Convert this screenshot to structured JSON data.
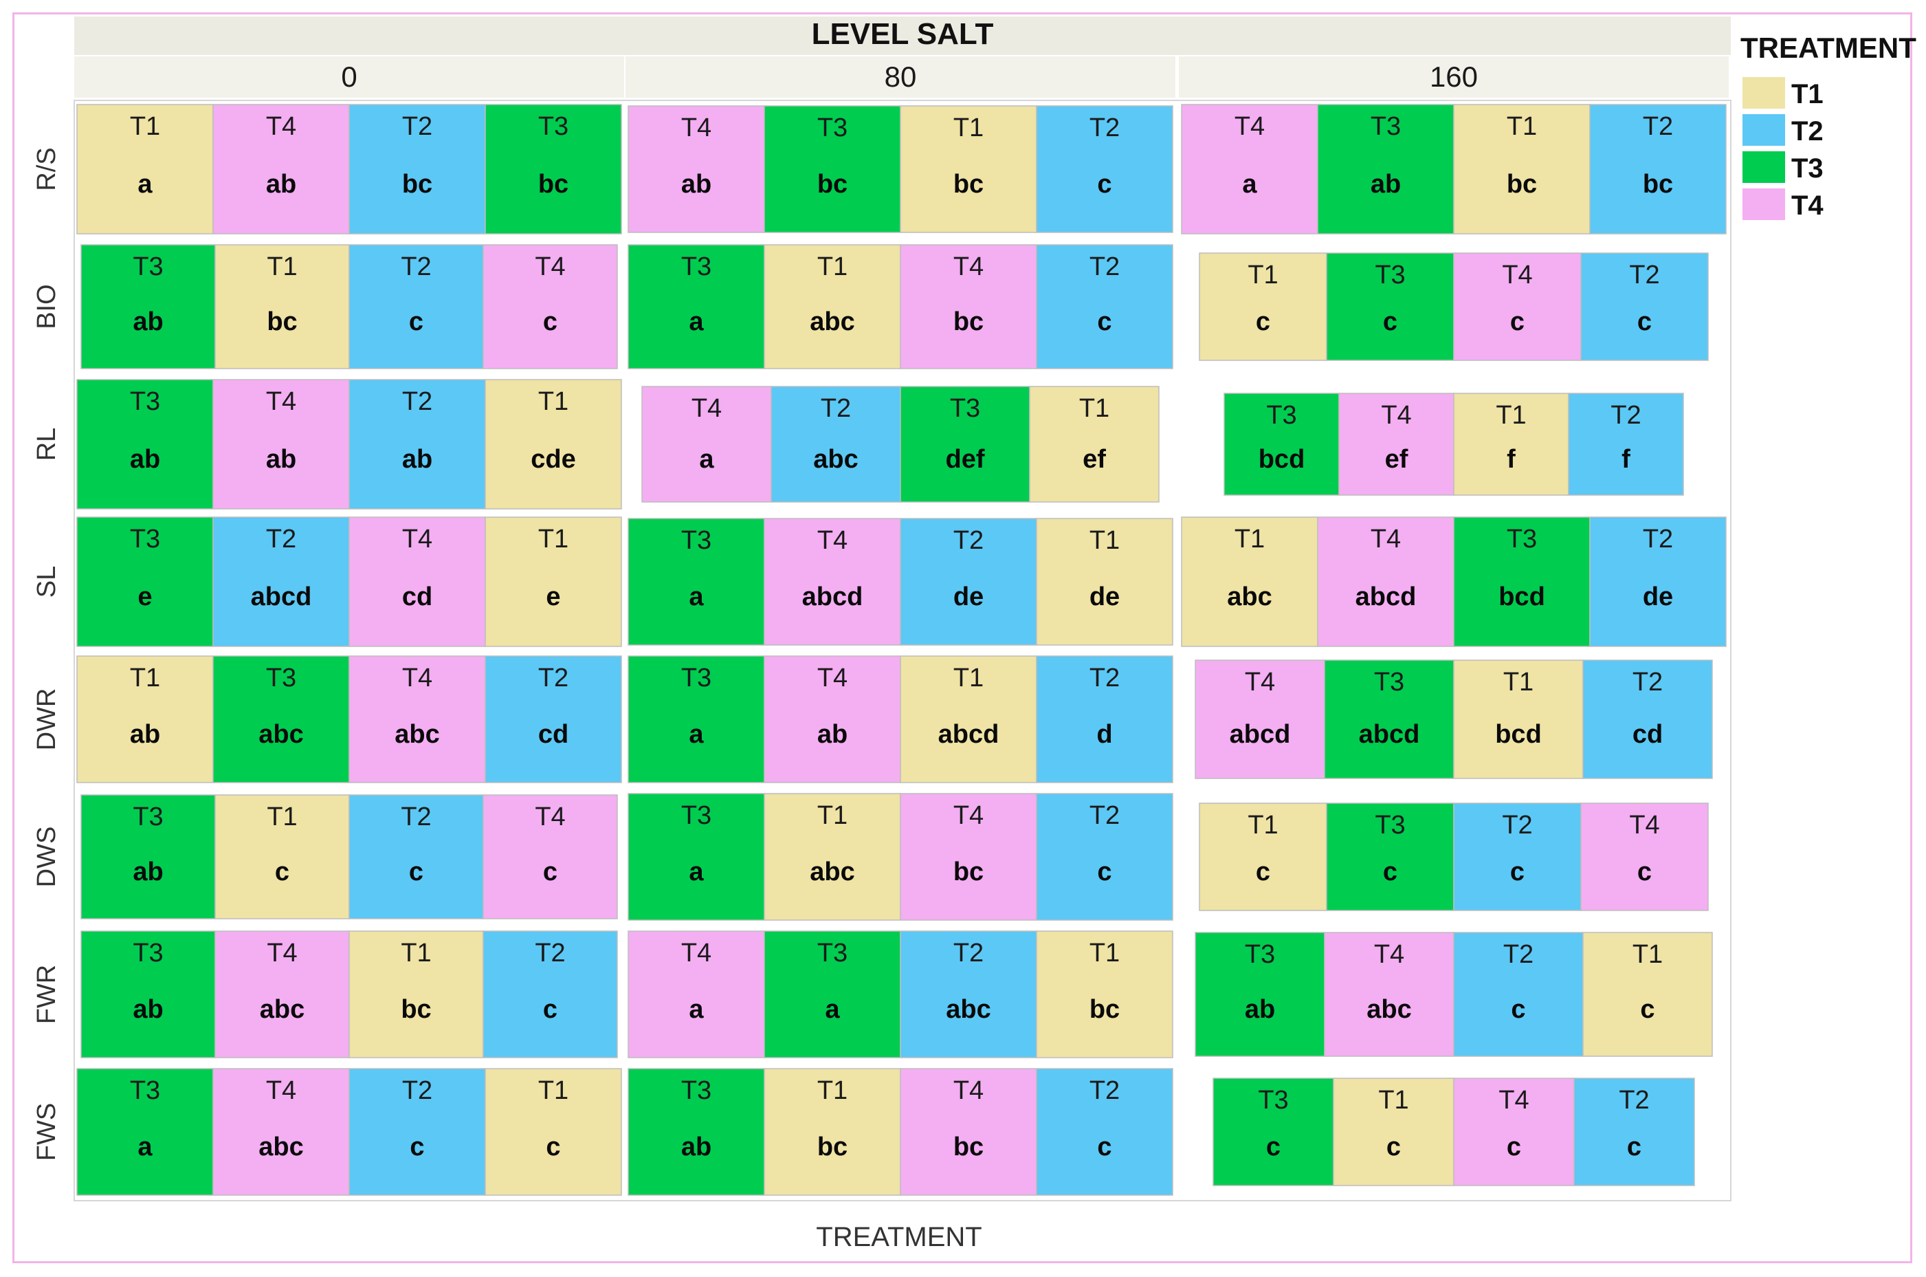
{
  "chart_data": {
    "type": "treemap",
    "title": "LEVEL SALT",
    "xlabel": "TREATMENT",
    "columns": [
      "0",
      "80",
      "160"
    ],
    "rows": [
      "R/S",
      "BIO",
      "RL",
      "SL",
      "DWR",
      "DWS",
      "FWR",
      "FWS"
    ],
    "legend": {
      "title": "TREATMENT",
      "placement": "right",
      "items": [
        {
          "label": "T1",
          "color": "#efe3a5"
        },
        {
          "label": "T2",
          "color": "#5cc8f5"
        },
        {
          "label": "T3",
          "color": "#00cc50"
        },
        {
          "label": "T4",
          "color": "#f4aef2"
        }
      ]
    },
    "cells": [
      [
        [
          {
            "t": "T1",
            "v": "a"
          },
          {
            "t": "T4",
            "v": "ab"
          },
          {
            "t": "T2",
            "v": "bc"
          },
          {
            "t": "T3",
            "v": "bc"
          }
        ],
        [
          {
            "t": "T4",
            "v": "ab"
          },
          {
            "t": "T3",
            "v": "bc"
          },
          {
            "t": "T1",
            "v": "bc"
          },
          {
            "t": "T2",
            "v": "c"
          }
        ],
        [
          {
            "t": "T4",
            "v": "a"
          },
          {
            "t": "T3",
            "v": "ab"
          },
          {
            "t": "T1",
            "v": "bc"
          },
          {
            "t": "T2",
            "v": "bc"
          }
        ]
      ],
      [
        [
          {
            "t": "T3",
            "v": "ab"
          },
          {
            "t": "T1",
            "v": "bc"
          },
          {
            "t": "T2",
            "v": "c"
          },
          {
            "t": "T4",
            "v": "c"
          }
        ],
        [
          {
            "t": "T3",
            "v": "a"
          },
          {
            "t": "T1",
            "v": "abc"
          },
          {
            "t": "T4",
            "v": "bc"
          },
          {
            "t": "T2",
            "v": "c"
          }
        ],
        [
          {
            "t": "T1",
            "v": "c"
          },
          {
            "t": "T3",
            "v": "c"
          },
          {
            "t": "T4",
            "v": "c"
          },
          {
            "t": "T2",
            "v": "c"
          }
        ]
      ],
      [
        [
          {
            "t": "T3",
            "v": "ab"
          },
          {
            "t": "T4",
            "v": "ab"
          },
          {
            "t": "T2",
            "v": "ab"
          },
          {
            "t": "T1",
            "v": "cde"
          }
        ],
        [
          {
            "t": "T4",
            "v": "a"
          },
          {
            "t": "T2",
            "v": "abc"
          },
          {
            "t": "T3",
            "v": "def"
          },
          {
            "t": "T1",
            "v": "ef"
          }
        ],
        [
          {
            "t": "T3",
            "v": "bcd"
          },
          {
            "t": "T4",
            "v": "ef"
          },
          {
            "t": "T1",
            "v": "f"
          },
          {
            "t": "T2",
            "v": "f"
          }
        ]
      ],
      [
        [
          {
            "t": "T3",
            "v": "e"
          },
          {
            "t": "T2",
            "v": "abcd"
          },
          {
            "t": "T4",
            "v": "cd"
          },
          {
            "t": "T1",
            "v": "e"
          }
        ],
        [
          {
            "t": "T3",
            "v": "a"
          },
          {
            "t": "T4",
            "v": "abcd"
          },
          {
            "t": "T2",
            "v": "de"
          },
          {
            "t": "T1",
            "v": "de"
          }
        ],
        [
          {
            "t": "T1",
            "v": "abc"
          },
          {
            "t": "T4",
            "v": "abcd"
          },
          {
            "t": "T3",
            "v": "bcd"
          },
          {
            "t": "T2",
            "v": "de"
          }
        ]
      ],
      [
        [
          {
            "t": "T1",
            "v": "ab"
          },
          {
            "t": "T3",
            "v": "abc"
          },
          {
            "t": "T4",
            "v": "abc"
          },
          {
            "t": "T2",
            "v": "cd"
          }
        ],
        [
          {
            "t": "T3",
            "v": "a"
          },
          {
            "t": "T4",
            "v": "ab"
          },
          {
            "t": "T1",
            "v": "abcd"
          },
          {
            "t": "T2",
            "v": "d"
          }
        ],
        [
          {
            "t": "T4",
            "v": "abcd"
          },
          {
            "t": "T3",
            "v": "abcd"
          },
          {
            "t": "T1",
            "v": "bcd"
          },
          {
            "t": "T2",
            "v": "cd"
          }
        ]
      ],
      [
        [
          {
            "t": "T3",
            "v": "ab"
          },
          {
            "t": "T1",
            "v": "c"
          },
          {
            "t": "T2",
            "v": "c"
          },
          {
            "t": "T4",
            "v": "c"
          }
        ],
        [
          {
            "t": "T3",
            "v": "a"
          },
          {
            "t": "T1",
            "v": "abc"
          },
          {
            "t": "T4",
            "v": "bc"
          },
          {
            "t": "T2",
            "v": "c"
          }
        ],
        [
          {
            "t": "T1",
            "v": "c"
          },
          {
            "t": "T3",
            "v": "c"
          },
          {
            "t": "T2",
            "v": "c"
          },
          {
            "t": "T4",
            "v": "c"
          }
        ]
      ],
      [
        [
          {
            "t": "T3",
            "v": "ab"
          },
          {
            "t": "T4",
            "v": "abc"
          },
          {
            "t": "T1",
            "v": "bc"
          },
          {
            "t": "T2",
            "v": "c"
          }
        ],
        [
          {
            "t": "T4",
            "v": "a"
          },
          {
            "t": "T3",
            "v": "a"
          },
          {
            "t": "T2",
            "v": "abc"
          },
          {
            "t": "T1",
            "v": "bc"
          }
        ],
        [
          {
            "t": "T3",
            "v": "ab"
          },
          {
            "t": "T4",
            "v": "abc"
          },
          {
            "t": "T2",
            "v": "c"
          },
          {
            "t": "T1",
            "v": "c"
          }
        ]
      ],
      [
        [
          {
            "t": "T3",
            "v": "a"
          },
          {
            "t": "T4",
            "v": "abc"
          },
          {
            "t": "T2",
            "v": "c"
          },
          {
            "t": "T1",
            "v": "c"
          }
        ],
        [
          {
            "t": "T3",
            "v": "ab"
          },
          {
            "t": "T1",
            "v": "bc"
          },
          {
            "t": "T4",
            "v": "bc"
          },
          {
            "t": "T2",
            "v": "c"
          }
        ],
        [
          {
            "t": "T3",
            "v": "c"
          },
          {
            "t": "T1",
            "v": "c"
          },
          {
            "t": "T4",
            "v": "c"
          },
          {
            "t": "T2",
            "v": "c"
          }
        ]
      ]
    ]
  }
}
